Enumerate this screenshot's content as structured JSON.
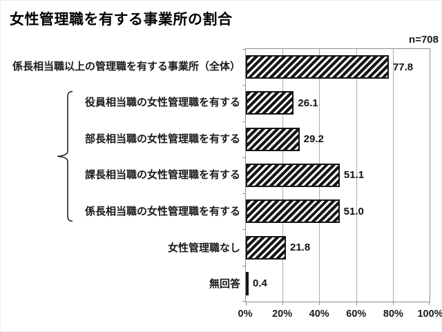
{
  "chart_data": {
    "type": "bar",
    "orientation": "horizontal",
    "title": "女性管理職を有する事業所の割合",
    "n_label": "n=708",
    "categories": [
      "係長相当職以上の管理職を有する事業所（全体）",
      "役員相当職の女性管理職を有する",
      "部長相当職の女性管理職を有する",
      "課長相当職の女性管理職を有する",
      "係長相当職の女性管理職を有する",
      "女性管理職なし",
      "無回答"
    ],
    "values": [
      77.8,
      26.1,
      29.2,
      51.1,
      51.0,
      21.8,
      0.4
    ],
    "value_labels": [
      "77.8",
      "26.1",
      "29.2",
      "51.1",
      "51.0",
      "21.8",
      "0.4"
    ],
    "x_tick_labels": [
      "0%",
      "20%",
      "40%",
      "60%",
      "80%",
      "100%"
    ],
    "xlim": [
      0,
      100
    ],
    "grid": true,
    "legend_position": "none",
    "bar_style": "black diagonal hatch (/) stripes on white with black outline",
    "brace_grouped_categories": [
      "役員相当職の女性管理職を有する",
      "部長相当職の女性管理職を有する",
      "課長相当職の女性管理職を有する",
      "係長相当職の女性管理職を有する"
    ],
    "colors": {
      "bar": "#151515",
      "text": "#1a1a1a",
      "grid_line": "#ababab",
      "axis_line": "#8c8c8c",
      "background": "#ffffff"
    }
  }
}
